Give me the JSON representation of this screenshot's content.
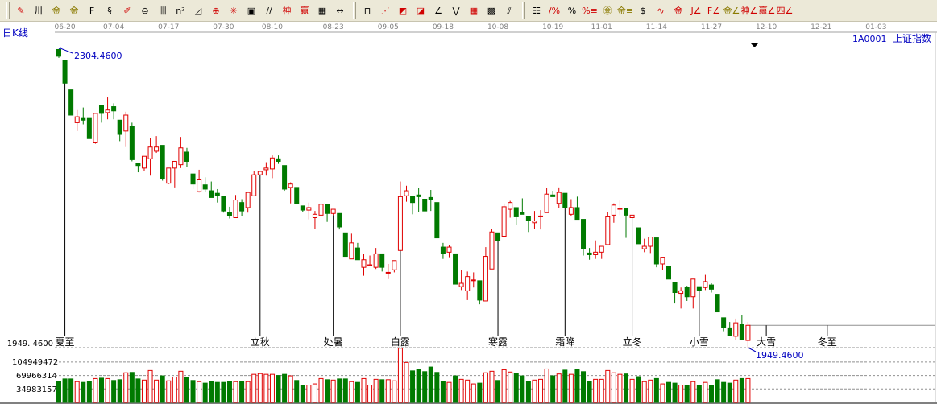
{
  "toolbar": {
    "groups": [
      [
        {
          "icon": "pencil-icon",
          "glyph": "✎",
          "color": "red"
        },
        {
          "icon": "parallel-lines-icon",
          "glyph": "卅",
          "color": ""
        },
        {
          "icon": "gold-split-lines-icon",
          "glyph": "金",
          "color": "gold"
        },
        {
          "icon": "gold-split-icon",
          "glyph": "金",
          "color": "gold"
        },
        {
          "icon": "fibonacci-icon",
          "glyph": "F",
          "color": ""
        },
        {
          "icon": "spiral-icon",
          "glyph": "§",
          "color": ""
        },
        {
          "icon": "pencil-ruler-icon",
          "glyph": "✐",
          "color": "red"
        },
        {
          "icon": "circle-icon",
          "glyph": "⊜",
          "color": ""
        },
        {
          "icon": "cycle-lines-icon",
          "glyph": "卌",
          "color": ""
        },
        {
          "icon": "square-lines-icon",
          "glyph": "n²",
          "color": ""
        },
        {
          "icon": "triangle-ruler-icon",
          "glyph": "◿",
          "color": ""
        },
        {
          "icon": "crosshair-circle-icon",
          "glyph": "⊕",
          "color": "red"
        },
        {
          "icon": "web-icon",
          "glyph": "✳",
          "color": "red"
        },
        {
          "icon": "square-target-icon",
          "glyph": "▣",
          "color": ""
        },
        {
          "icon": "angle-marks-icon",
          "glyph": "//",
          "color": ""
        },
        {
          "icon": "god-line-icon",
          "glyph": "神",
          "color": "red"
        },
        {
          "icon": "win-line-icon",
          "glyph": "赢",
          "color": "red"
        },
        {
          "icon": "number-grid-icon",
          "glyph": "▦",
          "color": ""
        },
        {
          "icon": "width-measure-icon",
          "glyph": "↔",
          "color": ""
        }
      ],
      [
        {
          "icon": "frame-icon",
          "glyph": "⊓",
          "color": ""
        },
        {
          "icon": "fan-lines-icon",
          "glyph": "⋰",
          "color": "red"
        },
        {
          "icon": "box-lines-icon",
          "glyph": "◩",
          "color": "red"
        },
        {
          "icon": "box-diagonal-icon",
          "glyph": "◪",
          "color": "red"
        },
        {
          "icon": "angle-icon",
          "glyph": "∠",
          "color": ""
        },
        {
          "icon": "zigzag-icon",
          "glyph": "⋁",
          "color": ""
        },
        {
          "icon": "grid-icon",
          "glyph": "▦",
          "color": "red"
        },
        {
          "icon": "grid-dense-icon",
          "glyph": "▩",
          "color": ""
        },
        {
          "icon": "diagonal-lines-icon",
          "glyph": "⫽",
          "color": ""
        }
      ],
      [
        {
          "icon": "table-icon",
          "glyph": "☷",
          "color": ""
        },
        {
          "icon": "percent-slope-icon",
          "glyph": "/%",
          "color": "red"
        },
        {
          "icon": "percent-icon",
          "glyph": "%",
          "color": ""
        },
        {
          "icon": "percent-lines-icon",
          "glyph": "%≡",
          "color": "red"
        },
        {
          "icon": "gold-circle-icon",
          "glyph": "㊎",
          "color": "gold"
        },
        {
          "icon": "gold-lines-icon",
          "glyph": "金≡",
          "color": "gold"
        },
        {
          "icon": "dollar-fire-icon",
          "glyph": "$",
          "color": ""
        },
        {
          "icon": "wave-icon",
          "glyph": "∿",
          "color": "red"
        },
        {
          "icon": "gold-red-icon",
          "glyph": "金",
          "color": "red"
        },
        {
          "icon": "j-angle-icon",
          "glyph": "J∠",
          "color": "red"
        },
        {
          "icon": "f-angle-icon",
          "glyph": "F∠",
          "color": "red"
        },
        {
          "icon": "gold-angle-icon",
          "glyph": "金∠",
          "color": "gold"
        },
        {
          "icon": "god-angle-icon",
          "glyph": "神∠",
          "color": "red"
        },
        {
          "icon": "win-angle-icon",
          "glyph": "赢∠",
          "color": "red"
        },
        {
          "icon": "four-angle-icon",
          "glyph": "四∠",
          "color": "red"
        }
      ]
    ]
  },
  "colors": {
    "up": "#e00000",
    "down": "#007a00",
    "label_blue": "#0000c0",
    "axis_gray": "#808080",
    "toolbar_bg": "#ece9d8"
  },
  "chart_data": {
    "type": "candlestick",
    "period_label": "日K线",
    "security": {
      "code": "1A0001",
      "name": "上证指数"
    },
    "x_tick_labels": [
      {
        "label": "06-20",
        "bar": 1
      },
      {
        "label": "07-04",
        "bar": 9
      },
      {
        "label": "07-17",
        "bar": 18
      },
      {
        "label": "07-30",
        "bar": 27
      },
      {
        "label": "08-10",
        "bar": 35
      },
      {
        "label": "08-23",
        "bar": 45
      },
      {
        "label": "09-05",
        "bar": 54
      },
      {
        "label": "09-18",
        "bar": 63
      },
      {
        "label": "10-08",
        "bar": 72
      },
      {
        "label": "10-19",
        "bar": 81
      },
      {
        "label": "11-01",
        "bar": 89
      },
      {
        "label": "11-14",
        "bar": 98
      },
      {
        "label": "11-27",
        "bar": 107
      },
      {
        "label": "12-10",
        "bar": 116
      },
      {
        "label": "12-21",
        "bar": 125
      },
      {
        "label": "01-03",
        "bar": 134
      }
    ],
    "price_range": [
      1949.46,
      2304.46
    ],
    "high_label": "2304.4600",
    "low_label": "1949.4600",
    "price_axis_label": "1949. 4600",
    "volume_axis_labels": [
      "104949472",
      "69966314",
      "34983157"
    ],
    "volume_axis_values": [
      104949472,
      69966314,
      34983157
    ],
    "solar_terms": [
      {
        "label": "夏至",
        "bar": 1
      },
      {
        "label": "立秋",
        "bar": 33
      },
      {
        "label": "处暑",
        "bar": 45
      },
      {
        "label": "白露",
        "bar": 56
      },
      {
        "label": "寒露",
        "bar": 72
      },
      {
        "label": "霜降",
        "bar": 83
      },
      {
        "label": "立冬",
        "bar": 94
      },
      {
        "label": "小雪",
        "bar": 105
      },
      {
        "label": "大雪",
        "bar": 116
      },
      {
        "label": "冬至",
        "bar": 126
      }
    ],
    "ohlc": [
      [
        2304,
        2304.46,
        2294,
        2296
      ],
      [
        2291,
        2291,
        2264,
        2264
      ],
      [
        2256,
        2256,
        2226,
        2226
      ],
      [
        2217,
        2232,
        2207,
        2224
      ],
      [
        2222,
        2235,
        2215,
        2220
      ],
      [
        2222,
        2222,
        2198,
        2198
      ],
      [
        2193,
        2228,
        2192,
        2228
      ],
      [
        2237,
        2237,
        2217,
        2228
      ],
      [
        2229,
        2247,
        2221,
        2232
      ],
      [
        2236,
        2240,
        2221,
        2231
      ],
      [
        2220,
        2220,
        2195,
        2203
      ],
      [
        2207,
        2230,
        2188,
        2226
      ],
      [
        2213,
        2217,
        2171,
        2173
      ],
      [
        2169,
        2169,
        2158,
        2166
      ],
      [
        2163,
        2177,
        2159,
        2177
      ],
      [
        2174,
        2199,
        2154,
        2188
      ],
      [
        2183,
        2201,
        2181,
        2188
      ],
      [
        2190,
        2190,
        2148,
        2150
      ],
      [
        2145,
        2163,
        2144,
        2163
      ],
      [
        2163,
        2171,
        2140,
        2171
      ],
      [
        2167,
        2200,
        2163,
        2187
      ],
      [
        2182,
        2187,
        2164,
        2171
      ],
      [
        2156,
        2156,
        2138,
        2144
      ],
      [
        2135,
        2161,
        2134,
        2149
      ],
      [
        2143,
        2152,
        2135,
        2138
      ],
      [
        2136,
        2147,
        2128,
        2128
      ],
      [
        2133,
        2138,
        2122,
        2130
      ],
      [
        2129,
        2129,
        2110,
        2112
      ],
      [
        2110,
        2117,
        2103,
        2106
      ],
      [
        2104,
        2131,
        2104,
        2125
      ],
      [
        2122,
        2126,
        2106,
        2112
      ],
      [
        2116,
        2134,
        2110,
        2134
      ],
      [
        2130,
        2160,
        2130,
        2155
      ],
      [
        2155,
        2159,
        2155,
        2159
      ],
      [
        2161,
        2170,
        2154,
        2163
      ],
      [
        2162,
        2178,
        2151,
        2175
      ],
      [
        2174,
        2178,
        2168,
        2171
      ],
      [
        2166,
        2166,
        2136,
        2138
      ],
      [
        2140,
        2146,
        2121,
        2144
      ],
      [
        2140,
        2140,
        2121,
        2121
      ],
      [
        2118,
        2118,
        2111,
        2113
      ],
      [
        2113,
        2122,
        2102,
        2116
      ],
      [
        2104,
        2112,
        2091,
        2108
      ],
      [
        2107,
        2125,
        2107,
        2120
      ],
      [
        2120,
        2120,
        2099,
        2109
      ],
      [
        2109,
        2114,
        2107,
        2114
      ],
      [
        2109,
        2109,
        2090,
        2093
      ],
      [
        2086,
        2086,
        2058,
        2058
      ],
      [
        2055,
        2085,
        2055,
        2074
      ],
      [
        2068,
        2074,
        2054,
        2054
      ],
      [
        2045,
        2061,
        2035,
        2054
      ],
      [
        2047,
        2059,
        2047,
        2048
      ],
      [
        2045,
        2068,
        2043,
        2061
      ],
      [
        2061,
        2061,
        2040,
        2045
      ],
      [
        2039,
        2049,
        2031,
        2039
      ],
      [
        2042,
        2053,
        2039,
        2053
      ],
      [
        2065,
        2147,
        2065,
        2129
      ],
      [
        2130,
        2142,
        2123,
        2136
      ],
      [
        2129,
        2129,
        2108,
        2122
      ],
      [
        2131,
        2139,
        2111,
        2129
      ],
      [
        2126,
        2126,
        2112,
        2112
      ],
      [
        2128,
        2137,
        2112,
        2126
      ],
      [
        2122,
        2122,
        2080,
        2080
      ],
      [
        2069,
        2074,
        2055,
        2061
      ],
      [
        2063,
        2071,
        2057,
        2069
      ],
      [
        2061,
        2061,
        2025,
        2025
      ],
      [
        2022,
        2042,
        2018,
        2026
      ],
      [
        2017,
        2040,
        2006,
        2034
      ],
      [
        2030,
        2039,
        2021,
        2030
      ],
      [
        2029,
        2029,
        2001,
        2006
      ],
      [
        2005,
        2069,
        2005,
        2058
      ],
      [
        2043,
        2091,
        2043,
        2087
      ],
      [
        2086,
        2086,
        2077,
        2077
      ],
      [
        2082,
        2121,
        2082,
        2117
      ],
      [
        2114,
        2124,
        2104,
        2122
      ],
      [
        2116,
        2116,
        2095,
        2105
      ],
      [
        2110,
        2127,
        2108,
        2108
      ],
      [
        2105,
        2105,
        2087,
        2101
      ],
      [
        2098,
        2112,
        2091,
        2100
      ],
      [
        2105,
        2113,
        2090,
        2106
      ],
      [
        2110,
        2139,
        2110,
        2132
      ],
      [
        2131,
        2136,
        2129,
        2129
      ],
      [
        2121,
        2140,
        2115,
        2134
      ],
      [
        2133,
        2133,
        2116,
        2116
      ],
      [
        2108,
        2126,
        2106,
        2116
      ],
      [
        2116,
        2129,
        2102,
        2102
      ],
      [
        2102,
        2102,
        2059,
        2067
      ],
      [
        2062,
        2068,
        2054,
        2060
      ],
      [
        2060,
        2077,
        2055,
        2063
      ],
      [
        2063,
        2070,
        2055,
        2070
      ],
      [
        2072,
        2111,
        2072,
        2105
      ],
      [
        2107,
        2121,
        2098,
        2119
      ],
      [
        2114,
        2125,
        2107,
        2115
      ],
      [
        2115,
        2115,
        2080,
        2107
      ],
      [
        2104,
        2107,
        2104,
        2107
      ],
      [
        2092,
        2092,
        2073,
        2073
      ],
      [
        2067,
        2079,
        2063,
        2070
      ],
      [
        2070,
        2081,
        2062,
        2081
      ],
      [
        2080,
        2080,
        2045,
        2049
      ],
      [
        2049,
        2057,
        2042,
        2057
      ],
      [
        2046,
        2046,
        2031,
        2031
      ],
      [
        2027,
        2027,
        2002,
        2015
      ],
      [
        2014,
        2021,
        1996,
        2017
      ],
      [
        2021,
        2023,
        2005,
        2010
      ],
      [
        2010,
        2031,
        1996,
        2031
      ],
      [
        2022,
        2022,
        2017,
        2017
      ],
      [
        2021,
        2036,
        2018,
        2028
      ],
      [
        2024,
        2026,
        2015,
        2019
      ],
      [
        2013,
        2013,
        1992,
        1992
      ],
      [
        1985,
        1985,
        1969,
        1973
      ],
      [
        1973,
        1980,
        1963,
        1964
      ],
      [
        1963,
        1984,
        1959,
        1979
      ],
      [
        1977,
        1988,
        1959,
        1959
      ],
      [
        1958,
        1980,
        1949.46,
        1976
      ]
    ],
    "volume": [
      54600000,
      61000000,
      61000000,
      54000000,
      52000000,
      55000000,
      62000000,
      63000000,
      62000000,
      57000000,
      59000000,
      77000000,
      78000000,
      61000000,
      58000000,
      83000000,
      58000000,
      69000000,
      56000000,
      66000000,
      81000000,
      65000000,
      57000000,
      54000000,
      50000000,
      55000000,
      52000000,
      52000000,
      55000000,
      54000000,
      55000000,
      54000000,
      73000000,
      75000000,
      73000000,
      73000000,
      70000000,
      73000000,
      69000000,
      57000000,
      45000000,
      45000000,
      48000000,
      62000000,
      59000000,
      58000000,
      61000000,
      61000000,
      54000000,
      52000000,
      62000000,
      45000000,
      60000000,
      59000000,
      59000000,
      56000000,
      141000000,
      104000000,
      82000000,
      85000000,
      80000000,
      92000000,
      78000000,
      55000000,
      52000000,
      69000000,
      60000000,
      58000000,
      48000000,
      50000000,
      77000000,
      81000000,
      57000000,
      85000000,
      79000000,
      76000000,
      69000000,
      55000000,
      58000000,
      60000000,
      87000000,
      69000000,
      74000000,
      84000000,
      73000000,
      85000000,
      80000000,
      55000000,
      60000000,
      60000000,
      83000000,
      77000000,
      73000000,
      74000000,
      60000000,
      67000000,
      54000000,
      58000000,
      62000000,
      48000000,
      52000000,
      50000000,
      45000000,
      44000000,
      54000000,
      45000000,
      52000000,
      45000000,
      59000000,
      52000000,
      50000000,
      58000000,
      62000000,
      62000000
    ]
  }
}
